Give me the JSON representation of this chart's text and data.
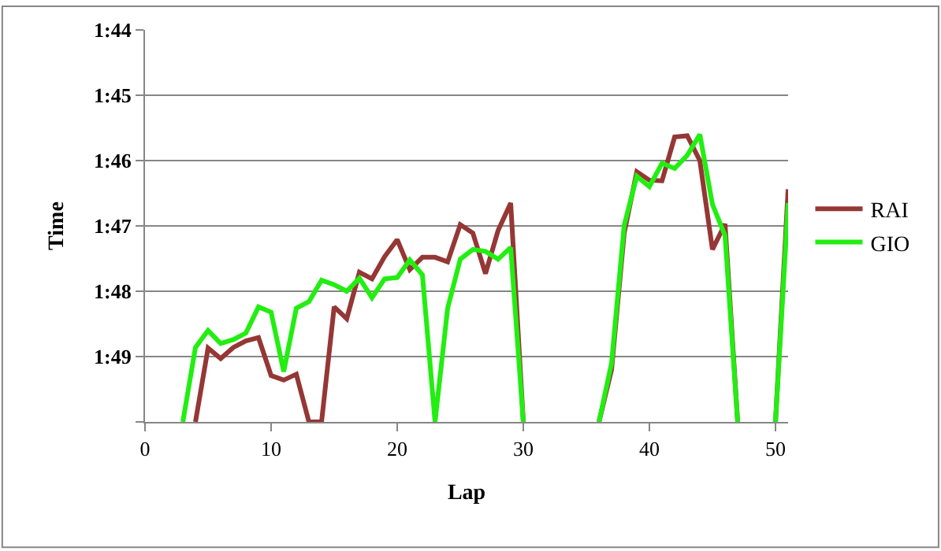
{
  "chart_data": {
    "type": "line",
    "xlabel": "Lap",
    "ylabel": "Time",
    "x": [
      3,
      4,
      5,
      6,
      7,
      8,
      9,
      10,
      11,
      12,
      13,
      14,
      15,
      16,
      17,
      18,
      19,
      20,
      21,
      22,
      23,
      24,
      25,
      26,
      27,
      28,
      29,
      30,
      31,
      32,
      33,
      34,
      35,
      36,
      37,
      38,
      39,
      40,
      41,
      42,
      43,
      44,
      45,
      46,
      47,
      48,
      49,
      50,
      51
    ],
    "series": [
      {
        "name": "RAI",
        "color": "#953735",
        "values": [
          null,
          110,
          108.87,
          109.03,
          108.86,
          108.76,
          108.71,
          109.29,
          109.36,
          109.27,
          110,
          110,
          108.24,
          108.42,
          107.71,
          107.81,
          107.47,
          107.21,
          107.67,
          107.48,
          107.48,
          107.55,
          106.98,
          107.11,
          107.73,
          107.07,
          106.65,
          110,
          null,
          null,
          null,
          null,
          null,
          110,
          109.2,
          107.11,
          106.17,
          106.3,
          106.31,
          105.64,
          105.62,
          106.0,
          107.36,
          106.97,
          110,
          null,
          null,
          110,
          106.44
        ]
      },
      {
        "name": "GIO",
        "color": "#22ee11",
        "values": [
          110,
          108.86,
          108.6,
          108.8,
          108.74,
          108.64,
          108.24,
          108.32,
          109.23,
          108.26,
          108.16,
          107.83,
          107.9,
          108.0,
          107.8,
          108.1,
          107.81,
          107.79,
          107.52,
          107.75,
          110,
          108.26,
          107.51,
          107.36,
          107.39,
          107.51,
          107.33,
          110,
          null,
          null,
          null,
          null,
          null,
          110,
          109.1,
          106.99,
          106.24,
          106.4,
          106.04,
          106.12,
          105.92,
          105.6,
          106.67,
          107.15,
          110,
          null,
          null,
          110,
          106.65
        ]
      }
    ],
    "xlim": [
      0,
      51
    ],
    "xticks": [
      0,
      10,
      20,
      30,
      40,
      50
    ],
    "ylim": [
      110,
      104
    ],
    "yticks": [
      {
        "value": 104,
        "label": "1:44"
      },
      {
        "value": 105,
        "label": "1:45"
      },
      {
        "value": 106,
        "label": "1:46"
      },
      {
        "value": 107,
        "label": "1:47"
      },
      {
        "value": 108,
        "label": "1:48"
      },
      {
        "value": 109,
        "label": "1:49"
      },
      {
        "value": 110,
        "label": null
      }
    ],
    "grid": "y",
    "legend": "right",
    "marker": "none",
    "line_style": "solid"
  }
}
